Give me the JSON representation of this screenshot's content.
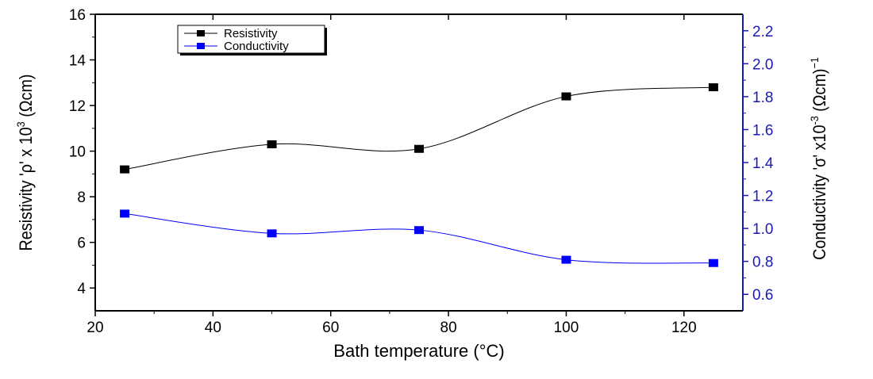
{
  "chart_data": {
    "type": "line",
    "xlabel": "Bath temperature (°C)",
    "xlim": [
      20,
      130
    ],
    "xticks": [
      20,
      40,
      60,
      80,
      100,
      120
    ],
    "x": [
      25,
      50,
      75,
      100,
      125
    ],
    "axes": {
      "left": {
        "label_main": "Resistivity 'ρ' x 10",
        "label_exp": "3",
        "label_unit": " (Ωcm)",
        "lim": [
          3,
          16
        ],
        "ticks": [
          4,
          6,
          8,
          10,
          12,
          14,
          16
        ],
        "color": "#000000"
      },
      "right": {
        "label_main": "Conductivity 'σ' x10",
        "label_exp": "-3",
        "label_unit": " (Ωcm)",
        "label_exp2": "−1",
        "lim": [
          0.5,
          2.3
        ],
        "ticks": [
          0.6,
          0.8,
          1.0,
          1.2,
          1.4,
          1.6,
          1.8,
          2.0,
          2.2
        ],
        "color": "#1a1ab8"
      }
    },
    "series": [
      {
        "name": "Resistivity",
        "axis": "left",
        "color": "#000000",
        "values": [
          9.2,
          10.3,
          10.1,
          12.4,
          12.8
        ]
      },
      {
        "name": "Conductivity",
        "axis": "right",
        "color": "#0000ff",
        "values": [
          1.09,
          0.97,
          0.99,
          0.81,
          0.79
        ]
      }
    ],
    "legend_position": "top-left",
    "grid": false,
    "smooth": true
  }
}
